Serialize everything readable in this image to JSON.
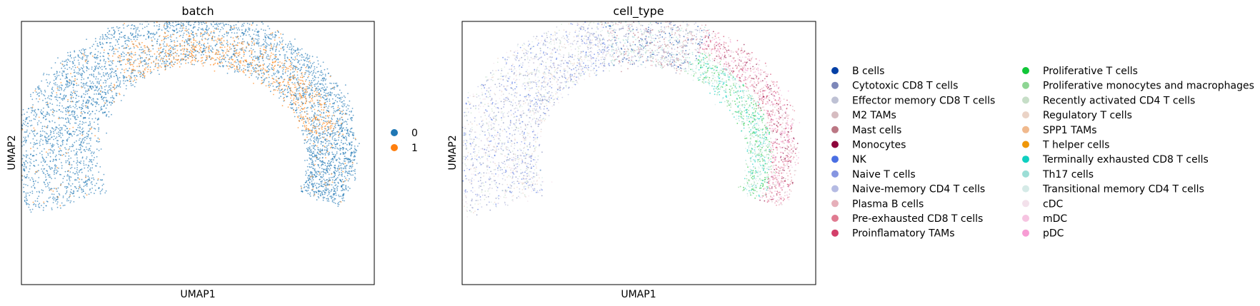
{
  "chart_data": [
    {
      "type": "scatter",
      "title": "batch",
      "xlabel": "UMAP1",
      "ylabel": "UMAP2",
      "grid": false,
      "legend_position": "right",
      "series": [
        {
          "name": "0",
          "color": "#1f77b4"
        },
        {
          "name": "1",
          "color": "#ff7f0e"
        }
      ]
    },
    {
      "type": "scatter",
      "title": "cell_type",
      "xlabel": "UMAP1",
      "ylabel": "UMAP2",
      "grid": false,
      "legend_position": "right",
      "legend_columns": 2,
      "series": [
        {
          "name": "B cells",
          "color": "#023fa5"
        },
        {
          "name": "Cytotoxic CD8 T cells",
          "color": "#7d87b9"
        },
        {
          "name": "Effector memory CD8 T cells",
          "color": "#bec1d4"
        },
        {
          "name": "M2 TAMs",
          "color": "#d6bcc0"
        },
        {
          "name": "Mast cells",
          "color": "#bb7784"
        },
        {
          "name": "Monocytes",
          "color": "#8e063b"
        },
        {
          "name": "NK",
          "color": "#4a6fe3"
        },
        {
          "name": "Naive T cells",
          "color": "#8595e1"
        },
        {
          "name": "Naive-memory CD4 T cells",
          "color": "#b5bbe3"
        },
        {
          "name": "Plasma B cells",
          "color": "#e6afb9"
        },
        {
          "name": "Pre-exhausted CD8 T cells",
          "color": "#e07b91"
        },
        {
          "name": "Proinflamatory TAMs",
          "color": "#d33f6a"
        },
        {
          "name": "Proliferative T cells",
          "color": "#11c638"
        },
        {
          "name": "Proliferative monocytes and macrophages",
          "color": "#8dd593"
        },
        {
          "name": "Recently activated CD4 T cells",
          "color": "#c6dec7"
        },
        {
          "name": "Regulatory T cells",
          "color": "#ead3c6"
        },
        {
          "name": "SPP1 TAMs",
          "color": "#f0b98d"
        },
        {
          "name": "T helper cells",
          "color": "#ef9708"
        },
        {
          "name": "Terminally exhausted CD8 T cells",
          "color": "#0fcfc0"
        },
        {
          "name": "Th17 cells",
          "color": "#9cded6"
        },
        {
          "name": "Transitional memory CD4 T cells",
          "color": "#d5eae7"
        },
        {
          "name": "cDC",
          "color": "#f3e1eb"
        },
        {
          "name": "mDC",
          "color": "#f6c4e1"
        },
        {
          "name": "pDC",
          "color": "#f79cd4"
        }
      ]
    }
  ]
}
